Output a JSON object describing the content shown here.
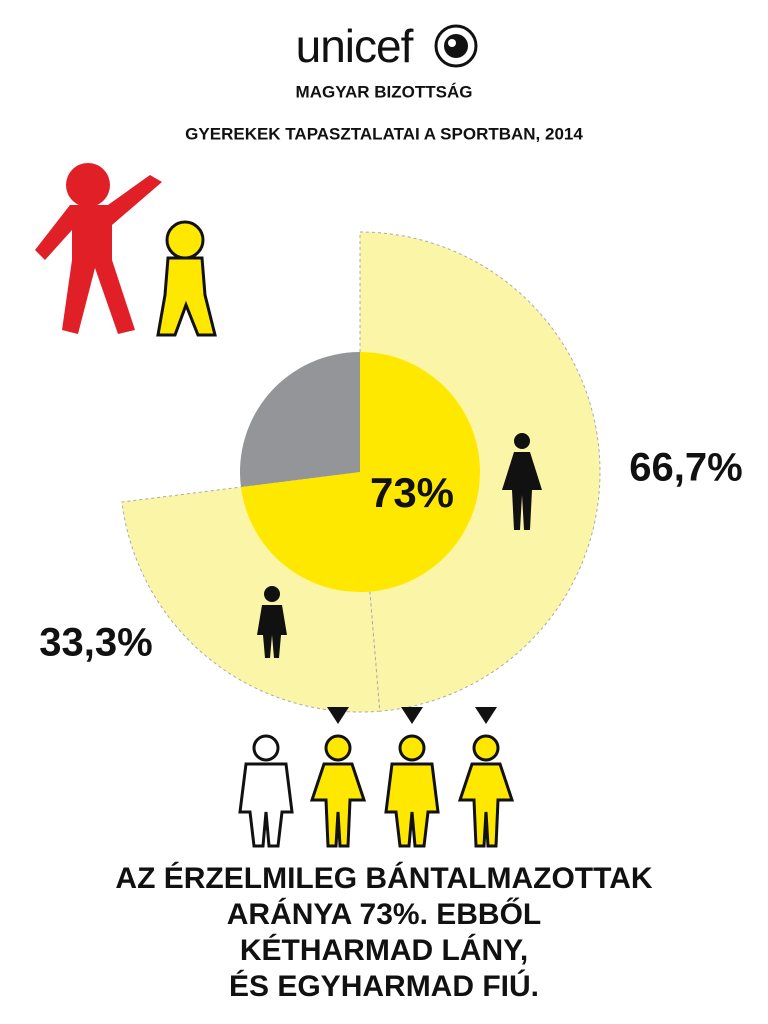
{
  "header": {
    "logo": "unicef",
    "subtitle": "MAGYAR BIZOTTSÁG",
    "title": "GYEREKEK TAPASZTALATAI A SPORTBAN, 2014"
  },
  "chart_data": {
    "type": "pie",
    "inner": {
      "values": [
        73,
        27
      ],
      "value_labels": [
        "73%",
        null
      ],
      "colors": [
        "#ffe800",
        "#939598"
      ]
    },
    "outer": {
      "values": [
        66.7,
        33.3
      ],
      "value_labels": [
        "66,7%",
        "33,3%"
      ],
      "color": "#fbf5a8"
    }
  },
  "caption": {
    "lines": [
      "AZ ÉRZELMILEG BÁNTALMAZOTTAK",
      "ARÁNYA 73%. EBBŐL",
      "KÉTHARMAD LÁNY,",
      "ÉS EGYHARMAD FIÚ."
    ]
  }
}
